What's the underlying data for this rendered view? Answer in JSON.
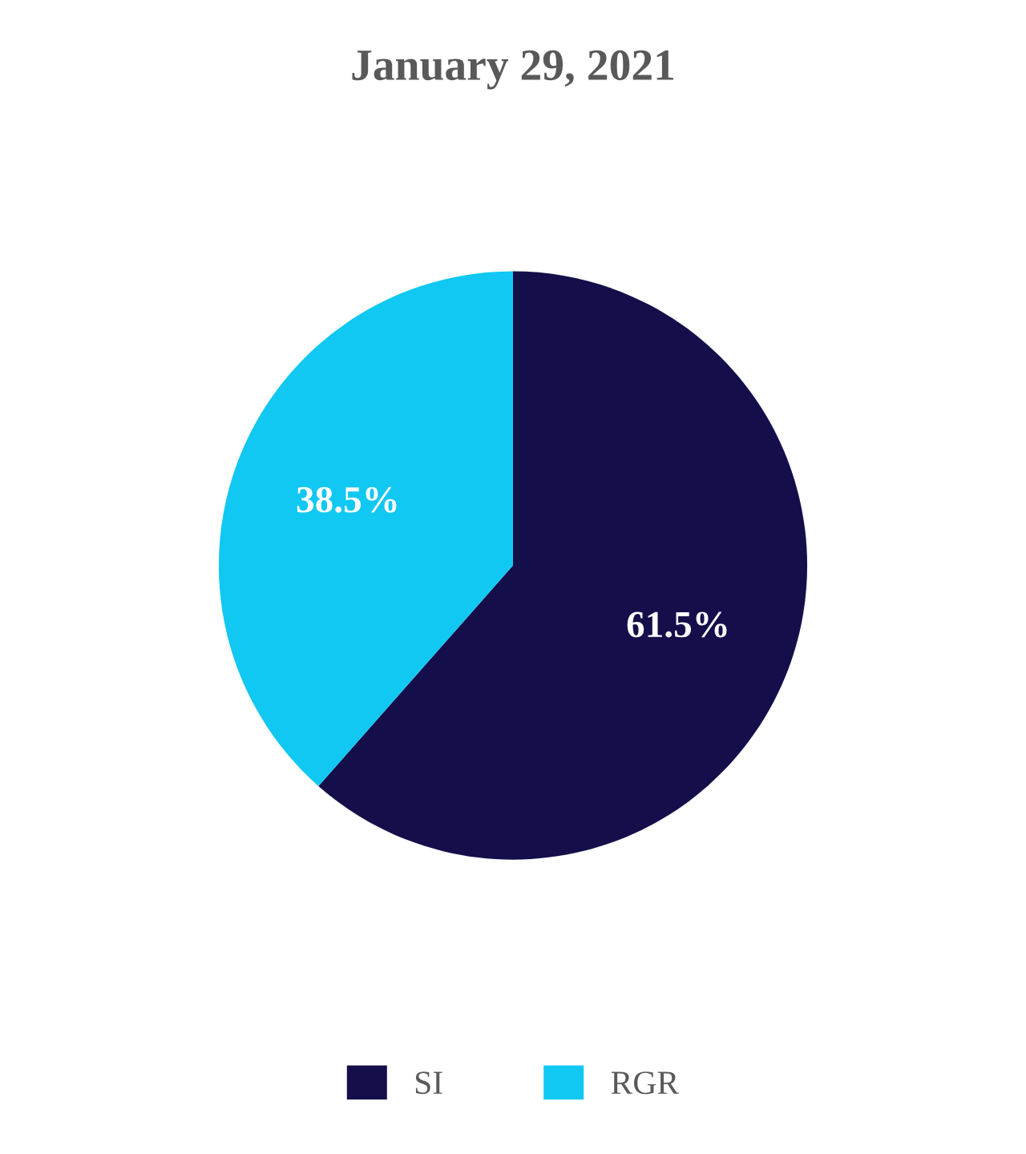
{
  "chart_data": {
    "type": "pie",
    "title": "January 29, 2021",
    "categories": [
      "SI",
      "RGR"
    ],
    "values": [
      61.5,
      38.5
    ],
    "colors": [
      "#140f4b",
      "#10c8f2"
    ],
    "value_labels": [
      "61.5%",
      "38.5%"
    ],
    "legend": "bottom"
  }
}
